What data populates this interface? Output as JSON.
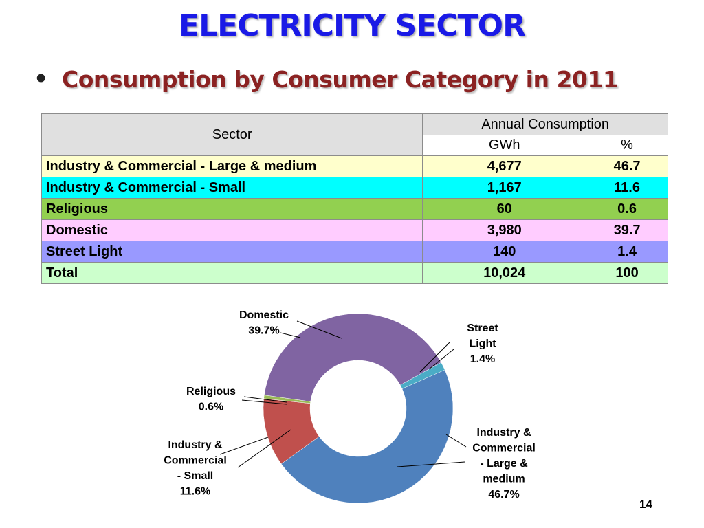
{
  "slide": {
    "title": "ELECTRICITY SECTOR",
    "bullet": "•",
    "subtitle": "Consumption by Consumer Category in 2011",
    "page_number": "14"
  },
  "table": {
    "header": {
      "sector": "Sector",
      "annual": "Annual Consumption",
      "gwh": "GWh",
      "pct": "%"
    },
    "rows": [
      {
        "label": "Industry &   Commercial - Large & medium",
        "gwh": "4,677",
        "pct": "46.7",
        "bg": "#ffffcc"
      },
      {
        "label": "Industry &   Commercial - Small",
        "gwh": "1,167",
        "pct": "11.6",
        "bg": "#00ffff"
      },
      {
        "label": "Religious",
        "gwh": "60",
        "pct": "0.6",
        "bg": "#92d050"
      },
      {
        "label": "Domestic",
        "gwh": "3,980",
        "pct": "39.7",
        "bg": "#ffccff"
      },
      {
        "label": "Street Light",
        "gwh": "140",
        "pct": "1.4",
        "bg": "#9999ff"
      },
      {
        "label": " Total",
        "gwh": "10,024",
        "pct": "100",
        "bg": "#ccffcc"
      }
    ]
  },
  "chart_data": {
    "type": "pie",
    "donut": true,
    "start_category": "Street Light",
    "direction": "clockwise",
    "series": [
      {
        "category": "Street Light",
        "value": 1.4,
        "color": "#4bacc6",
        "label_lines": [
          "Street",
          "Light",
          "1.4%"
        ]
      },
      {
        "category": "Industry & Commercial - Large & medium",
        "value": 46.7,
        "color": "#4f81bd",
        "label_lines": [
          "Industry &",
          "Commercial",
          "- Large &",
          "medium",
          "46.7%"
        ]
      },
      {
        "category": "Industry & Commercial - Small",
        "value": 11.6,
        "color": "#c0504d",
        "label_lines": [
          "Industry &",
          "Commercial",
          "- Small",
          "11.6%"
        ]
      },
      {
        "category": "Religious",
        "value": 0.6,
        "color": "#9bbb59",
        "label_lines": [
          "Religious",
          "0.6%"
        ]
      },
      {
        "category": "Domestic",
        "value": 39.7,
        "color": "#8064a2",
        "label_lines": [
          "Domestic",
          "39.7%"
        ]
      }
    ]
  }
}
